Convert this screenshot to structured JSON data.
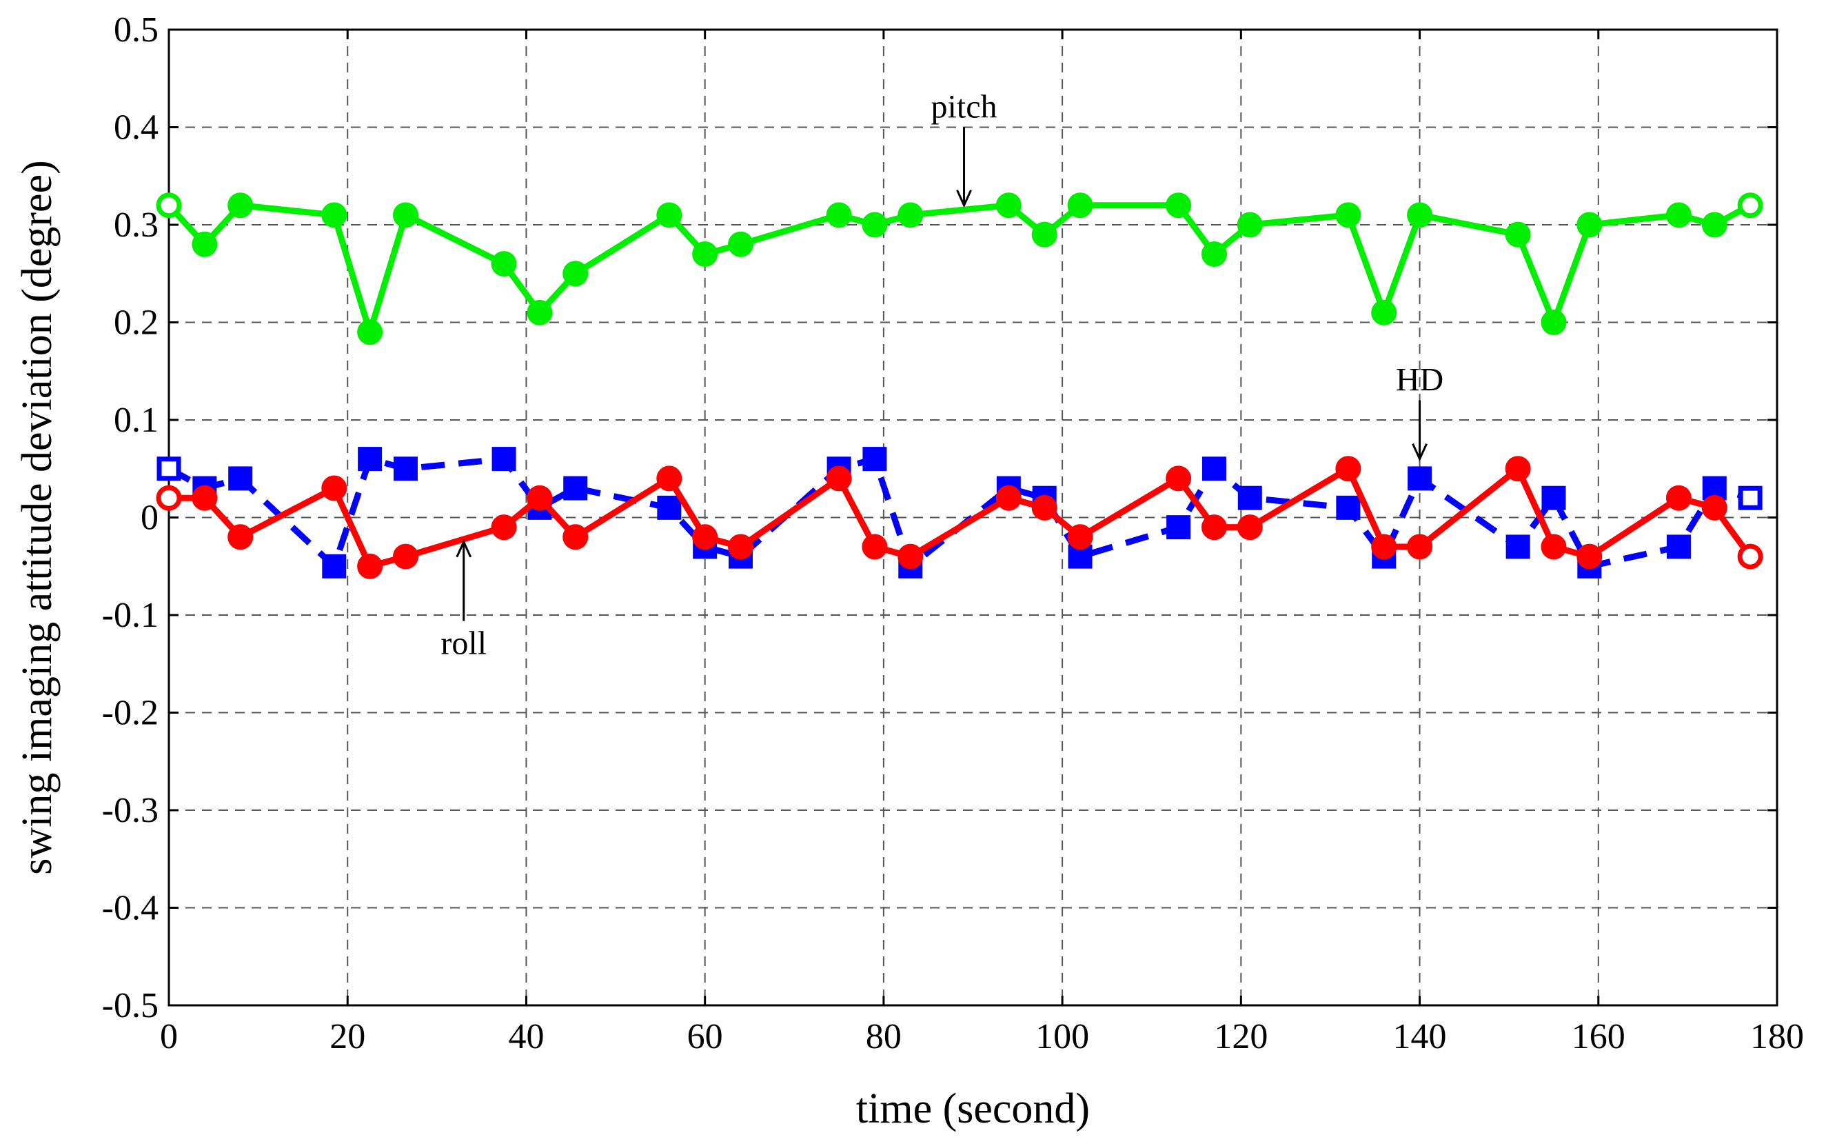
{
  "chart_data": {
    "type": "line",
    "title": "",
    "xlabel": "time (second)",
    "ylabel": "swing imaging attitude deviation (degree)",
    "xlim": [
      0,
      180
    ],
    "ylim": [
      -0.5,
      0.5
    ],
    "grid": true,
    "x_ticks": [
      0,
      20,
      40,
      60,
      80,
      100,
      120,
      140,
      160,
      180
    ],
    "x_tick_labels": [
      "0",
      "20",
      "40",
      "60",
      "80",
      "100",
      "120",
      "140",
      "160",
      "180"
    ],
    "y_ticks": [
      0.5,
      0.4,
      0.3,
      0.2,
      0.1,
      0,
      -0.1,
      -0.2,
      -0.3,
      -0.4,
      -0.5
    ],
    "y_tick_labels": [
      "0.5",
      "0.4",
      "0.3",
      "0.2",
      "0.1",
      "0",
      "-0.1",
      "-0.2",
      "-0.3",
      "-0.4",
      "-0.5"
    ],
    "series": [
      {
        "name": "pitch",
        "color": "#00ee00",
        "marker": "circle",
        "line_style": "solid",
        "x": [
          0,
          4,
          8,
          18.5,
          22.5,
          26.5,
          37.5,
          41.5,
          45.5,
          56,
          60,
          64,
          75,
          79,
          83,
          94,
          98,
          102,
          113,
          117,
          121,
          132,
          136,
          140,
          151,
          155,
          159,
          169,
          173,
          177
        ],
        "y": [
          0.32,
          0.28,
          0.32,
          0.31,
          0.19,
          0.31,
          0.26,
          0.21,
          0.25,
          0.31,
          0.27,
          0.28,
          0.31,
          0.3,
          0.31,
          0.32,
          0.29,
          0.32,
          0.32,
          0.27,
          0.3,
          0.31,
          0.21,
          0.31,
          0.29,
          0.2,
          0.3,
          0.31,
          0.3,
          0.32
        ]
      },
      {
        "name": "HD",
        "color": "#0000ff",
        "marker": "square",
        "line_style": "dashed",
        "x": [
          0,
          4,
          8,
          18.5,
          22.5,
          26.5,
          37.5,
          41.5,
          45.5,
          56,
          60,
          64,
          75,
          79,
          83,
          94,
          98,
          102,
          113,
          117,
          121,
          132,
          136,
          140,
          151,
          155,
          159,
          169,
          173,
          177
        ],
        "y": [
          0.05,
          0.03,
          0.04,
          -0.05,
          0.06,
          0.05,
          0.06,
          0.01,
          0.03,
          0.01,
          -0.03,
          -0.04,
          0.05,
          0.06,
          -0.05,
          0.03,
          0.02,
          -0.04,
          -0.01,
          0.05,
          0.02,
          0.01,
          -0.04,
          0.04,
          -0.03,
          0.02,
          -0.05,
          -0.03,
          0.03,
          0.02
        ]
      },
      {
        "name": "roll",
        "color": "#ff0000",
        "marker": "circle",
        "line_style": "solid",
        "x": [
          0,
          4,
          8,
          18.5,
          22.5,
          26.5,
          37.5,
          41.5,
          45.5,
          56,
          60,
          64,
          75,
          79,
          83,
          94,
          98,
          102,
          113,
          117,
          121,
          132,
          136,
          140,
          151,
          155,
          159,
          169,
          173,
          177
        ],
        "y": [
          0.02,
          0.02,
          -0.02,
          0.03,
          -0.05,
          -0.04,
          -0.01,
          0.02,
          -0.02,
          0.04,
          -0.02,
          -0.03,
          0.04,
          -0.03,
          -0.04,
          0.02,
          0.01,
          -0.02,
          0.04,
          -0.01,
          -0.01,
          0.05,
          -0.03,
          -0.03,
          0.05,
          -0.03,
          -0.04,
          0.02,
          0.01,
          -0.04
        ]
      }
    ],
    "annotations": [
      {
        "text": "pitch",
        "label_x": 89,
        "label_y": 0.41,
        "arrow_to": [
          89,
          0.32
        ]
      },
      {
        "text": "HD",
        "label_x": 140,
        "label_y": 0.13,
        "arrow_to": [
          140,
          0.06
        ]
      },
      {
        "text": "roll",
        "label_x": 33,
        "label_y": -0.14,
        "arrow_to": [
          33,
          -0.025
        ]
      }
    ]
  }
}
